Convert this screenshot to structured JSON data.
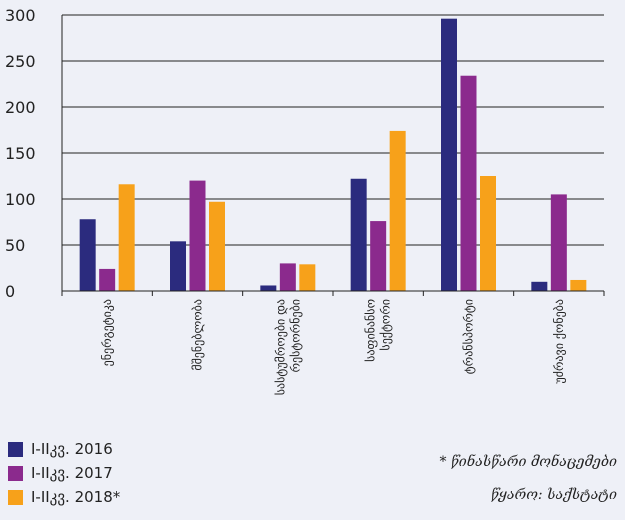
{
  "chart_data": {
    "type": "bar",
    "categories": [
      [
        "ენერგეტიკა"
      ],
      [
        "მშენებლობა"
      ],
      [
        "სასტუმროები და",
        "რესტორნები"
      ],
      [
        "საფინანსო",
        "სექტორი"
      ],
      [
        "ტრანსპორტი"
      ],
      [
        "უძრავი ქონება"
      ]
    ],
    "series": [
      {
        "name": "I-IIკვ. 2016",
        "color": "#2b2b7e",
        "values": [
          78,
          54,
          6,
          122,
          296,
          10
        ]
      },
      {
        "name": "I-IIკვ. 2017",
        "color": "#8b2a8d",
        "values": [
          24,
          120,
          30,
          76,
          234,
          105
        ]
      },
      {
        "name": "I-IIკვ. 2018*",
        "color": "#f7a11a",
        "values": [
          116,
          97,
          29,
          174,
          125,
          12
        ]
      }
    ],
    "ylim": [
      0,
      300
    ],
    "yticks": [
      0,
      50,
      100,
      150,
      200,
      250,
      300
    ],
    "grid": true,
    "legend_position": "bottom-left"
  },
  "notes": {
    "preliminary": "* წინასწარი მონაცემები",
    "source": "წყარო: საქსტატი"
  }
}
